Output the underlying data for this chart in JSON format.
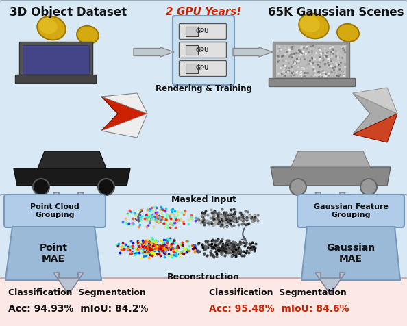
{
  "title_left": "3D Object Dataset",
  "title_right": "65K Gaussian Scenes",
  "gpu_label": "2 GPU Years!",
  "rendering_label": "Rendering & Training",
  "point_cloud_grouping": "Point Cloud\nGrouping",
  "gaussian_feature_grouping": "Gaussian Feature\nGrouping",
  "masked_input_label": "Masked Input",
  "reconstruction_label": "Reconstruction",
  "point_mae_label": "Point\nMAE",
  "gaussian_mae_label": "Gaussian\nMAE",
  "class_seg_left": "Classification  Segmentation",
  "acc_left": "Acc: 94.93%  mIoU: 84.2%",
  "class_seg_right": "Classification  Segmentation",
  "acc_right": "Acc: 95.48%  mIoU: 84.6%",
  "bg_top_color": "#d8e8f5",
  "bg_mid_color": "#d8e8f5",
  "bg_bot_color": "#fce8e4",
  "box_grouping_color": "#b0cce8",
  "box_mae_color": "#9bbad8",
  "gpu_box_color": "#c8dff0",
  "text_black": "#111111",
  "text_red": "#cc2200",
  "arrow_gray": "#999999",
  "figsize": [
    5.94,
    4.76
  ],
  "dpi": 100
}
